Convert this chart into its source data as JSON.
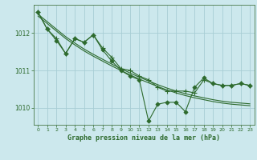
{
  "background_color": "#cce8ed",
  "grid_color": "#a8cdd4",
  "line_color": "#2d6a2d",
  "title": "Graphe pression niveau de la mer (hPa)",
  "xlim": [
    -0.5,
    23.5
  ],
  "ylim": [
    1009.55,
    1012.75
  ],
  "yticks": [
    1010,
    1011,
    1012
  ],
  "xticks": [
    0,
    1,
    2,
    3,
    4,
    5,
    6,
    7,
    8,
    9,
    10,
    11,
    12,
    13,
    14,
    15,
    16,
    17,
    18,
    19,
    20,
    21,
    22,
    23
  ],
  "series": [
    {
      "x": [
        0,
        1,
        2,
        3,
        4,
        5,
        6,
        7,
        8,
        9,
        10,
        11,
        12,
        13,
        14,
        15,
        16,
        17,
        18,
        19,
        20,
        21,
        22,
        23
      ],
      "y": [
        1012.45,
        1012.25,
        1012.05,
        1011.85,
        1011.68,
        1011.52,
        1011.38,
        1011.25,
        1011.12,
        1011.0,
        1010.88,
        1010.77,
        1010.67,
        1010.57,
        1010.48,
        1010.4,
        1010.33,
        1010.27,
        1010.22,
        1010.17,
        1010.13,
        1010.1,
        1010.08,
        1010.06
      ],
      "marker": null
    },
    {
      "x": [
        0,
        1,
        2,
        3,
        4,
        5,
        6,
        7,
        8,
        9,
        10,
        11,
        12,
        13,
        14,
        15,
        16,
        17,
        18,
        19,
        20,
        21,
        22,
        23
      ],
      "y": [
        1012.5,
        1012.3,
        1012.1,
        1011.9,
        1011.73,
        1011.57,
        1011.43,
        1011.3,
        1011.17,
        1011.05,
        1010.93,
        1010.82,
        1010.72,
        1010.62,
        1010.53,
        1010.45,
        1010.38,
        1010.32,
        1010.27,
        1010.22,
        1010.18,
        1010.15,
        1010.13,
        1010.11
      ],
      "marker": null
    },
    {
      "x": [
        0,
        1,
        2,
        3,
        4,
        5,
        6,
        7,
        8,
        9,
        10,
        11,
        12,
        13,
        14,
        15,
        16,
        17,
        18,
        19,
        20,
        21,
        22,
        23
      ],
      "y": [
        1012.55,
        1012.1,
        1011.85,
        1011.45,
        1011.85,
        1011.75,
        1011.95,
        1011.6,
        1011.35,
        1011.05,
        1011.0,
        1010.85,
        1010.75,
        1010.55,
        1010.45,
        1010.45,
        1010.45,
        1010.4,
        1010.75,
        1010.65,
        1010.6,
        1010.6,
        1010.65,
        1010.6
      ],
      "marker": "+",
      "markersize": 4
    },
    {
      "x": [
        0,
        1,
        2,
        3,
        4,
        5,
        6,
        7,
        8,
        9,
        10,
        11,
        12,
        13,
        14,
        15,
        16,
        17,
        18,
        19,
        20,
        21,
        22,
        23
      ],
      "y": [
        1012.55,
        1012.1,
        1011.8,
        1011.45,
        1011.85,
        1011.75,
        1011.95,
        1011.55,
        1011.25,
        1011.0,
        1010.85,
        1010.75,
        1009.65,
        1010.1,
        1010.15,
        1010.15,
        1009.9,
        1010.55,
        1010.8,
        1010.65,
        1010.6,
        1010.6,
        1010.65,
        1010.6
      ],
      "marker": "D",
      "markersize": 2.5
    }
  ]
}
